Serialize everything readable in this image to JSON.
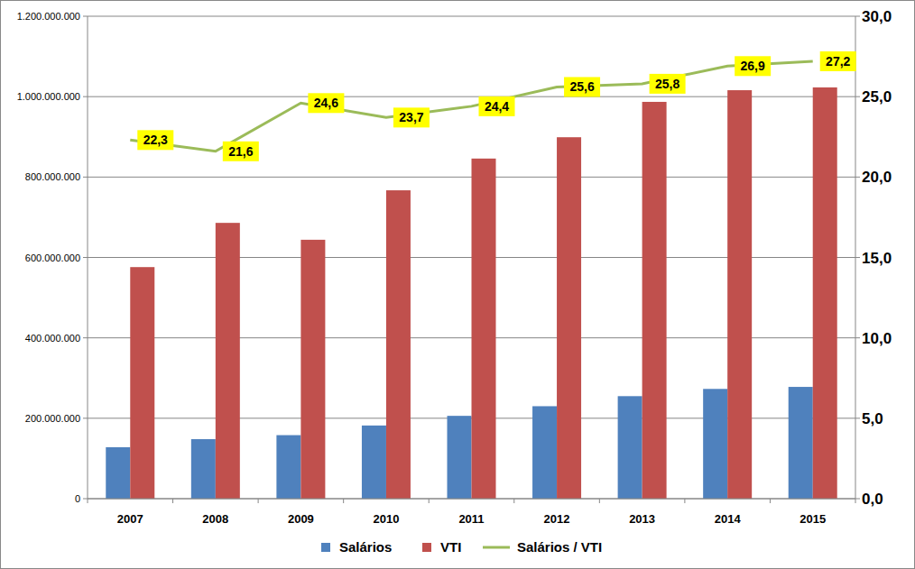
{
  "chart_data": {
    "type": "bar",
    "categories": [
      "2007",
      "2008",
      "2009",
      "2010",
      "2011",
      "2012",
      "2013",
      "2014",
      "2015"
    ],
    "series": [
      {
        "name": "Salários",
        "color": "#4f81bd",
        "type": "bar",
        "values": [
          128000000,
          148000000,
          158000000,
          182000000,
          206000000,
          230000000,
          255000000,
          273000000,
          278000000
        ]
      },
      {
        "name": "VTI",
        "color": "#c0504d",
        "type": "bar",
        "values": [
          576000000,
          686000000,
          644000000,
          767000000,
          846000000,
          899000000,
          987000000,
          1016000000,
          1023000000
        ]
      },
      {
        "name": "Salários / VTI",
        "color": "#9bbb59",
        "type": "line",
        "axis": "y2",
        "data_labels": true,
        "values": [
          22.3,
          21.6,
          24.6,
          23.7,
          24.4,
          25.6,
          25.8,
          26.9,
          27.2
        ],
        "value_labels": [
          "22,3",
          "21,6",
          "24,6",
          "23,7",
          "24,4",
          "25,6",
          "25,8",
          "26,9",
          "27,2"
        ]
      }
    ],
    "ylim": [
      0,
      1200000000
    ],
    "yticks": [
      0,
      {
        "value": 200000000,
        "label": "200.000.000"
      },
      {
        "value": 400000000,
        "label": "400.000.000"
      },
      {
        "value": 600000000,
        "label": "600.000.000"
      },
      {
        "value": 800000000,
        "label": "800.000.000"
      },
      {
        "value": 1000000000,
        "label": "1.000.000.000"
      },
      {
        "value": 1200000000,
        "label": "1.200.000.000"
      }
    ],
    "y2lim": [
      0,
      30
    ],
    "y2ticks": [
      {
        "value": 0,
        "label": "0,0"
      },
      {
        "value": 5,
        "label": "5,0"
      },
      {
        "value": 10,
        "label": "10,0"
      },
      {
        "value": 15,
        "label": "15,0"
      },
      {
        "value": 20,
        "label": "20,0"
      },
      {
        "value": 25,
        "label": "25,0"
      },
      {
        "value": 30,
        "label": "30,0"
      }
    ],
    "grid": true,
    "legend": "bottom"
  }
}
